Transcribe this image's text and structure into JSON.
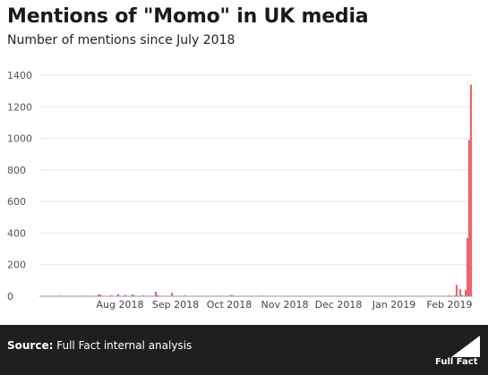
{
  "chart_data": {
    "type": "bar",
    "title": "Mentions of \"Momo\" in UK media",
    "subtitle": "Number of mentions since July 2018",
    "xlabel": "",
    "ylabel": "",
    "ylim": [
      0,
      1400
    ],
    "yticks": [
      0,
      200,
      400,
      600,
      800,
      1000,
      1200,
      1400
    ],
    "xticks": [
      "Aug 2018",
      "Sep 2018",
      "Oct 2018",
      "Nov 2018",
      "Dec 2018",
      "Jan 2019",
      "Feb 2019"
    ],
    "grid": true,
    "legend": "none",
    "bar_color": "#e8676f",
    "x": [
      "2018-07-05",
      "2018-07-08",
      "2018-07-12",
      "2018-07-15",
      "2018-07-20",
      "2018-07-26",
      "2018-07-29",
      "2018-08-03",
      "2018-08-04",
      "2018-08-10",
      "2018-08-11",
      "2018-08-14",
      "2018-08-18",
      "2018-08-22",
      "2018-08-23",
      "2018-08-28",
      "2018-08-29",
      "2018-09-01",
      "2018-09-04",
      "2018-09-05",
      "2018-09-08",
      "2018-09-13",
      "2018-09-20",
      "2018-09-27",
      "2018-10-08",
      "2018-10-16",
      "2018-10-17",
      "2018-10-22",
      "2018-11-02",
      "2018-11-05",
      "2018-11-20",
      "2018-12-01",
      "2018-12-20",
      "2019-01-10",
      "2019-01-25",
      "2019-02-05",
      "2019-02-15",
      "2019-02-18",
      "2019-02-19",
      "2019-02-21",
      "2019-02-22",
      "2019-02-23",
      "2019-02-24",
      "2019-02-25",
      "2019-02-26",
      "2019-02-27"
    ],
    "values": [
      3,
      2,
      5,
      2,
      3,
      4,
      2,
      10,
      12,
      6,
      4,
      14,
      8,
      12,
      5,
      5,
      4,
      3,
      28,
      6,
      3,
      22,
      6,
      3,
      4,
      8,
      6,
      3,
      5,
      3,
      2,
      2,
      2,
      2,
      2,
      3,
      6,
      5,
      72,
      45,
      8,
      3,
      40,
      370,
      990,
      1340
    ],
    "source_label": "Source:",
    "source_text": "Full Fact internal analysis",
    "logo_text": "Full Fact"
  }
}
